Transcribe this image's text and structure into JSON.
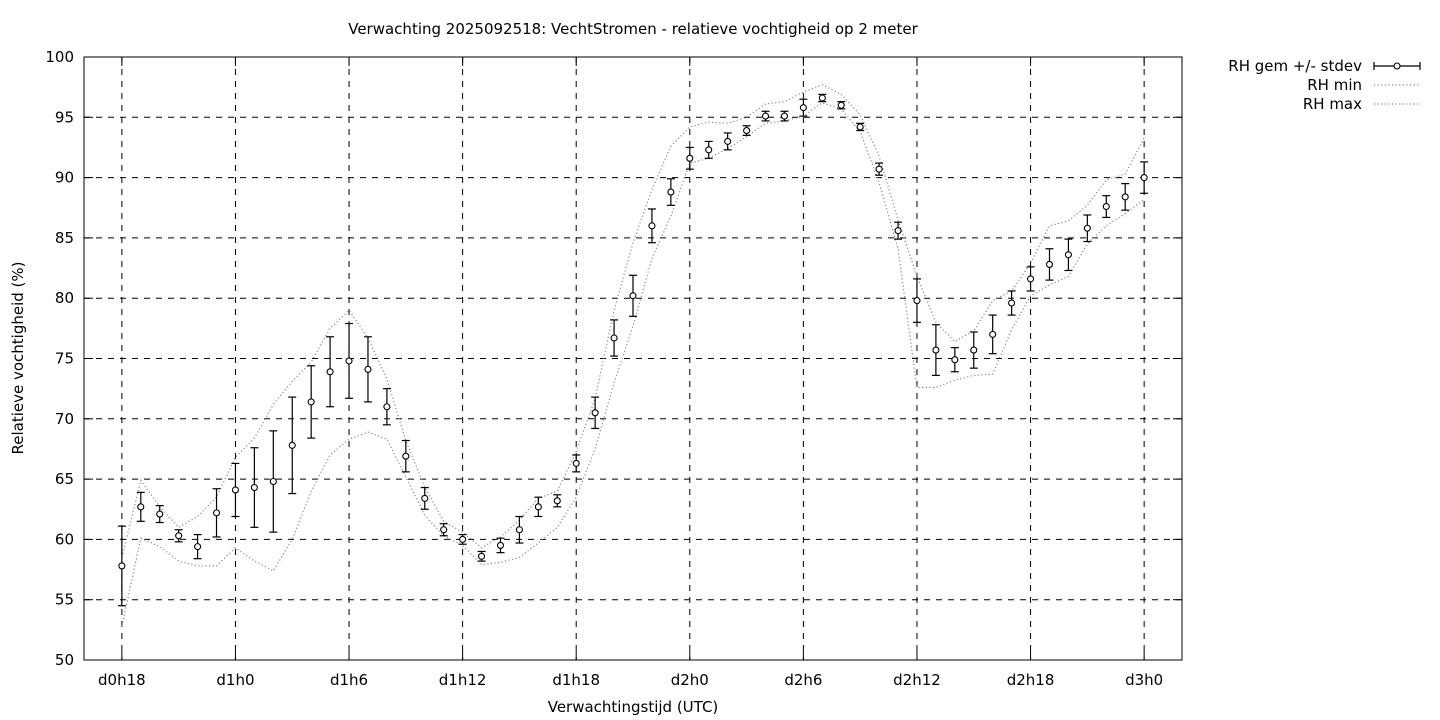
{
  "chart_data": {
    "type": "line",
    "title": "Verwachting 2025092518: VechtStromen - relatieve vochtigheid op 2 meter",
    "xlabel": "Verwachtingstijd (UTC)",
    "ylabel": "Relatieve vochtigheid (%)",
    "ylim": [
      50,
      100
    ],
    "xlim": [
      -2,
      56
    ],
    "grid": true,
    "legend_placement": "outside-top-right",
    "y_ticks": [
      50,
      55,
      60,
      65,
      70,
      75,
      80,
      85,
      90,
      95,
      100
    ],
    "x_ticks": [
      {
        "hour": 0,
        "label": "d0h18"
      },
      {
        "hour": 6,
        "label": "d1h0"
      },
      {
        "hour": 12,
        "label": "d1h6"
      },
      {
        "hour": 18,
        "label": "d1h12"
      },
      {
        "hour": 24,
        "label": "d1h18"
      },
      {
        "hour": 30,
        "label": "d2h0"
      },
      {
        "hour": 36,
        "label": "d2h6"
      },
      {
        "hour": 42,
        "label": "d2h12"
      },
      {
        "hour": 48,
        "label": "d2h18"
      },
      {
        "hour": 54,
        "label": "d3h0"
      }
    ],
    "series": [
      {
        "name": "RH gem +/- stdev",
        "style": "points-errorbars",
        "x": [
          0,
          1,
          2,
          3,
          4,
          5,
          6,
          7,
          8,
          9,
          10,
          11,
          12,
          13,
          14,
          15,
          16,
          17,
          18,
          19,
          20,
          21,
          22,
          23,
          24,
          25,
          26,
          27,
          28,
          29,
          30,
          31,
          32,
          33,
          34,
          35,
          36,
          37,
          38,
          39,
          40,
          41,
          42,
          43,
          44,
          45,
          46,
          47,
          48,
          49,
          50,
          51,
          52,
          53,
          54
        ],
        "mean": [
          57.8,
          62.7,
          62.1,
          60.3,
          59.4,
          62.2,
          64.1,
          64.3,
          64.8,
          67.8,
          71.4,
          73.9,
          74.8,
          74.1,
          71.0,
          66.9,
          63.4,
          60.8,
          60.0,
          58.6,
          59.5,
          60.8,
          62.7,
          63.2,
          66.3,
          70.5,
          76.7,
          80.2,
          86.0,
          88.8,
          91.6,
          92.3,
          93.0,
          93.9,
          95.1,
          95.1,
          95.8,
          96.6,
          96.0,
          94.2,
          90.7,
          85.6,
          79.8,
          75.7,
          74.9,
          75.7,
          77.0,
          79.6,
          81.6,
          82.8,
          83.6,
          85.8,
          87.6,
          88.4,
          90.0
        ],
        "stdev": [
          3.3,
          1.2,
          0.7,
          0.5,
          1.0,
          2.0,
          2.2,
          3.3,
          4.2,
          4.0,
          3.0,
          2.9,
          3.1,
          2.7,
          1.5,
          1.3,
          0.9,
          0.5,
          0.4,
          0.4,
          0.6,
          1.1,
          0.8,
          0.5,
          0.7,
          1.3,
          1.5,
          1.7,
          1.4,
          1.1,
          0.9,
          0.7,
          0.7,
          0.4,
          0.4,
          0.4,
          0.7,
          0.3,
          0.3,
          0.3,
          0.5,
          0.7,
          1.8,
          2.1,
          1.0,
          1.5,
          1.6,
          1.0,
          1.0,
          1.3,
          1.3,
          1.1,
          0.9,
          1.1,
          1.3
        ],
        "color": "#000000"
      },
      {
        "name": "RH min",
        "style": "dotted-line",
        "x": [
          0,
          1,
          2,
          3,
          4,
          5,
          6,
          7,
          8,
          9,
          10,
          11,
          12,
          13,
          14,
          15,
          16,
          17,
          18,
          19,
          20,
          21,
          22,
          23,
          24,
          25,
          26,
          27,
          28,
          29,
          30,
          31,
          32,
          33,
          34,
          35,
          36,
          37,
          38,
          39,
          40,
          41,
          42,
          43,
          44,
          45,
          46,
          47,
          48,
          49,
          50,
          51,
          52,
          53,
          54
        ],
        "values": [
          52.8,
          60.1,
          59.4,
          58.2,
          57.8,
          57.8,
          59.3,
          58.2,
          57.4,
          60.0,
          64.0,
          67.0,
          68.3,
          68.9,
          68.3,
          65.2,
          62.0,
          60.3,
          59.5,
          57.9,
          58.1,
          58.5,
          59.7,
          61.0,
          63.5,
          67.5,
          73.0,
          77.7,
          83.3,
          86.8,
          91.2,
          91.6,
          92.4,
          93.4,
          94.5,
          94.7,
          95.1,
          96.2,
          95.7,
          93.8,
          89.6,
          84.1,
          72.6,
          72.6,
          73.2,
          73.6,
          73.7,
          77.4,
          80.2,
          81.1,
          81.8,
          84.5,
          86.0,
          87.0,
          88.2
        ],
        "color": "#888888"
      },
      {
        "name": "RH max",
        "style": "dotted-line",
        "x": [
          0,
          1,
          2,
          3,
          4,
          5,
          6,
          7,
          8,
          9,
          10,
          11,
          12,
          13,
          14,
          15,
          16,
          17,
          18,
          19,
          20,
          21,
          22,
          23,
          24,
          25,
          26,
          27,
          28,
          29,
          30,
          31,
          32,
          33,
          34,
          35,
          36,
          37,
          38,
          39,
          40,
          41,
          42,
          43,
          44,
          45,
          46,
          47,
          48,
          49,
          50,
          51,
          52,
          53,
          54
        ],
        "values": [
          58.5,
          64.9,
          62.7,
          61.0,
          61.9,
          63.5,
          66.8,
          68.4,
          71.2,
          73.1,
          74.7,
          77.5,
          79.0,
          76.7,
          73.3,
          68.2,
          64.3,
          61.5,
          60.6,
          59.3,
          60.2,
          61.6,
          63.4,
          64.0,
          67.3,
          71.7,
          79.0,
          84.6,
          89.0,
          92.6,
          94.2,
          94.6,
          94.5,
          95.0,
          96.1,
          96.3,
          97.1,
          97.7,
          96.9,
          95.2,
          91.8,
          86.5,
          81.8,
          78.0,
          76.4,
          77.3,
          79.8,
          80.6,
          82.9,
          86.0,
          86.4,
          87.7,
          89.8,
          90.3,
          93.3
        ],
        "color": "#888888"
      }
    ]
  }
}
